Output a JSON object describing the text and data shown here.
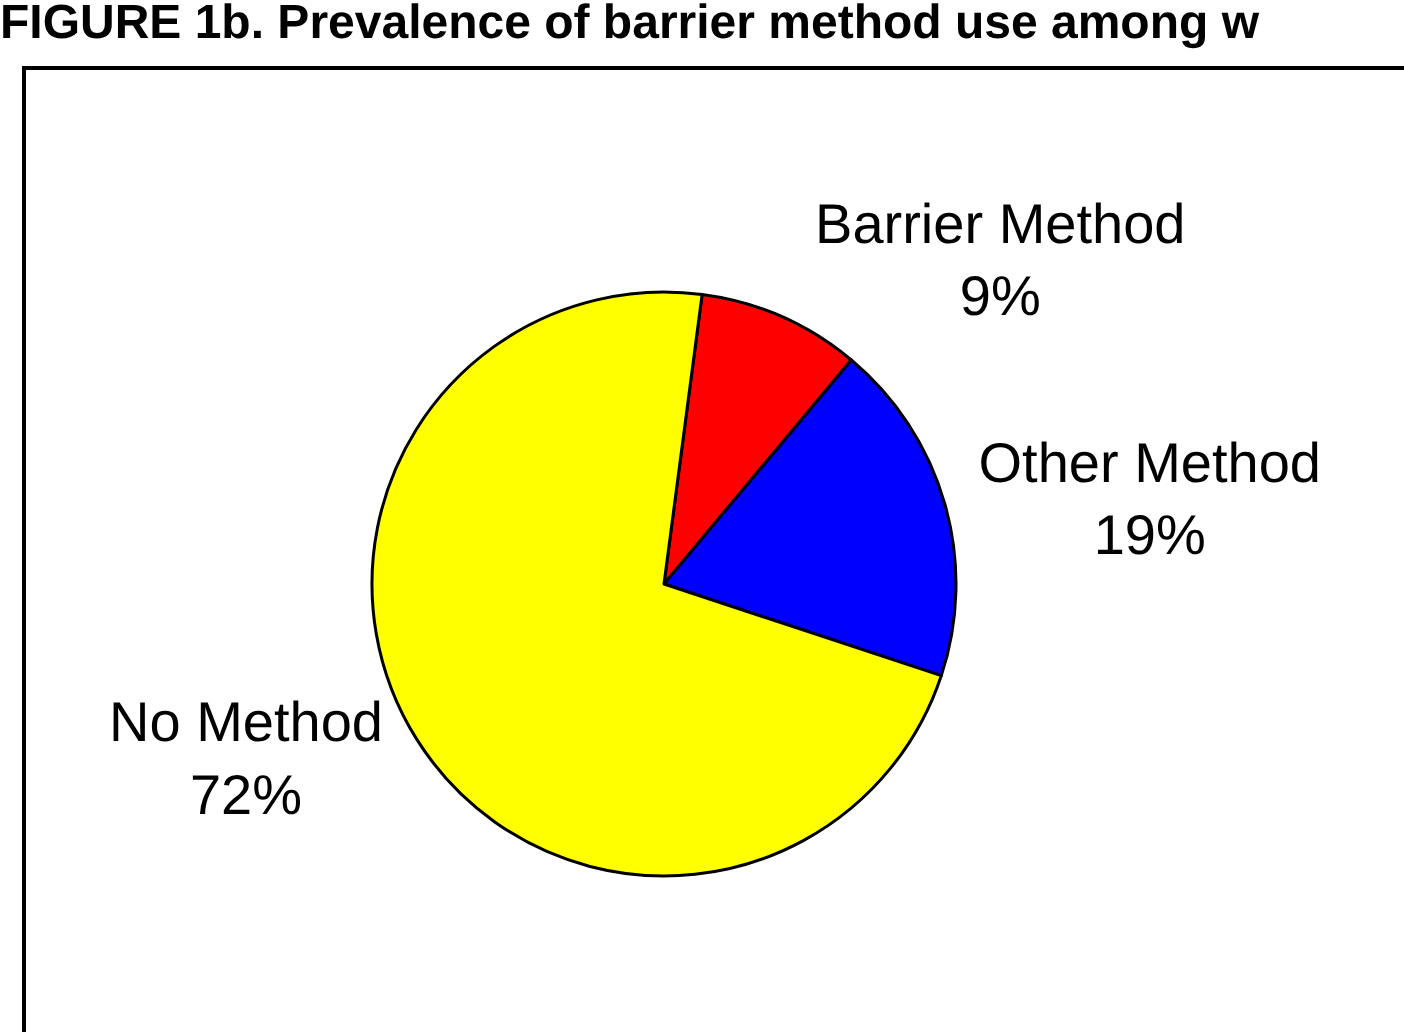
{
  "chart_data": {
    "type": "pie",
    "title": "FIGURE 1b. Prevalence of barrier method use among w",
    "categories": [
      "Barrier Method",
      "Other Method",
      "No Method"
    ],
    "values": [
      9,
      19,
      72
    ],
    "value_labels": [
      "9%",
      "19%",
      "72%"
    ],
    "colors": [
      "#ff0000",
      "#0000ff",
      "#ffff00"
    ],
    "legend": false
  }
}
